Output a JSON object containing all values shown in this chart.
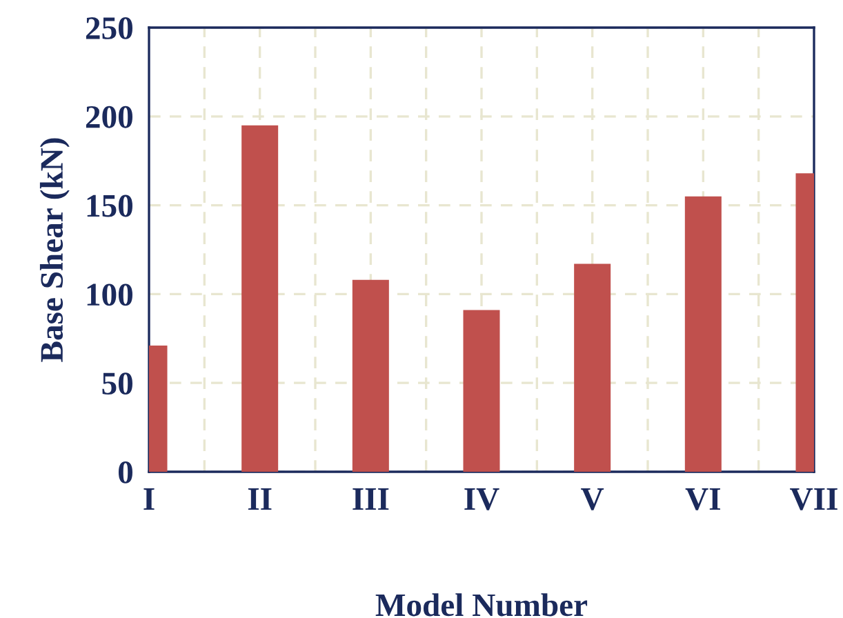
{
  "chart_data": {
    "type": "bar",
    "xlabel": "Model Number",
    "ylabel": "Base Shear (kN)",
    "categories": [
      "I",
      "II",
      "III",
      "IV",
      "V",
      "VI",
      "VII"
    ],
    "values": [
      71,
      195,
      108,
      91,
      117,
      155,
      168
    ],
    "color": "#c0504d",
    "ylim": [
      0,
      250
    ],
    "yticks": [
      0,
      50,
      100,
      150,
      200,
      250
    ],
    "grid": true,
    "legend": false
  }
}
